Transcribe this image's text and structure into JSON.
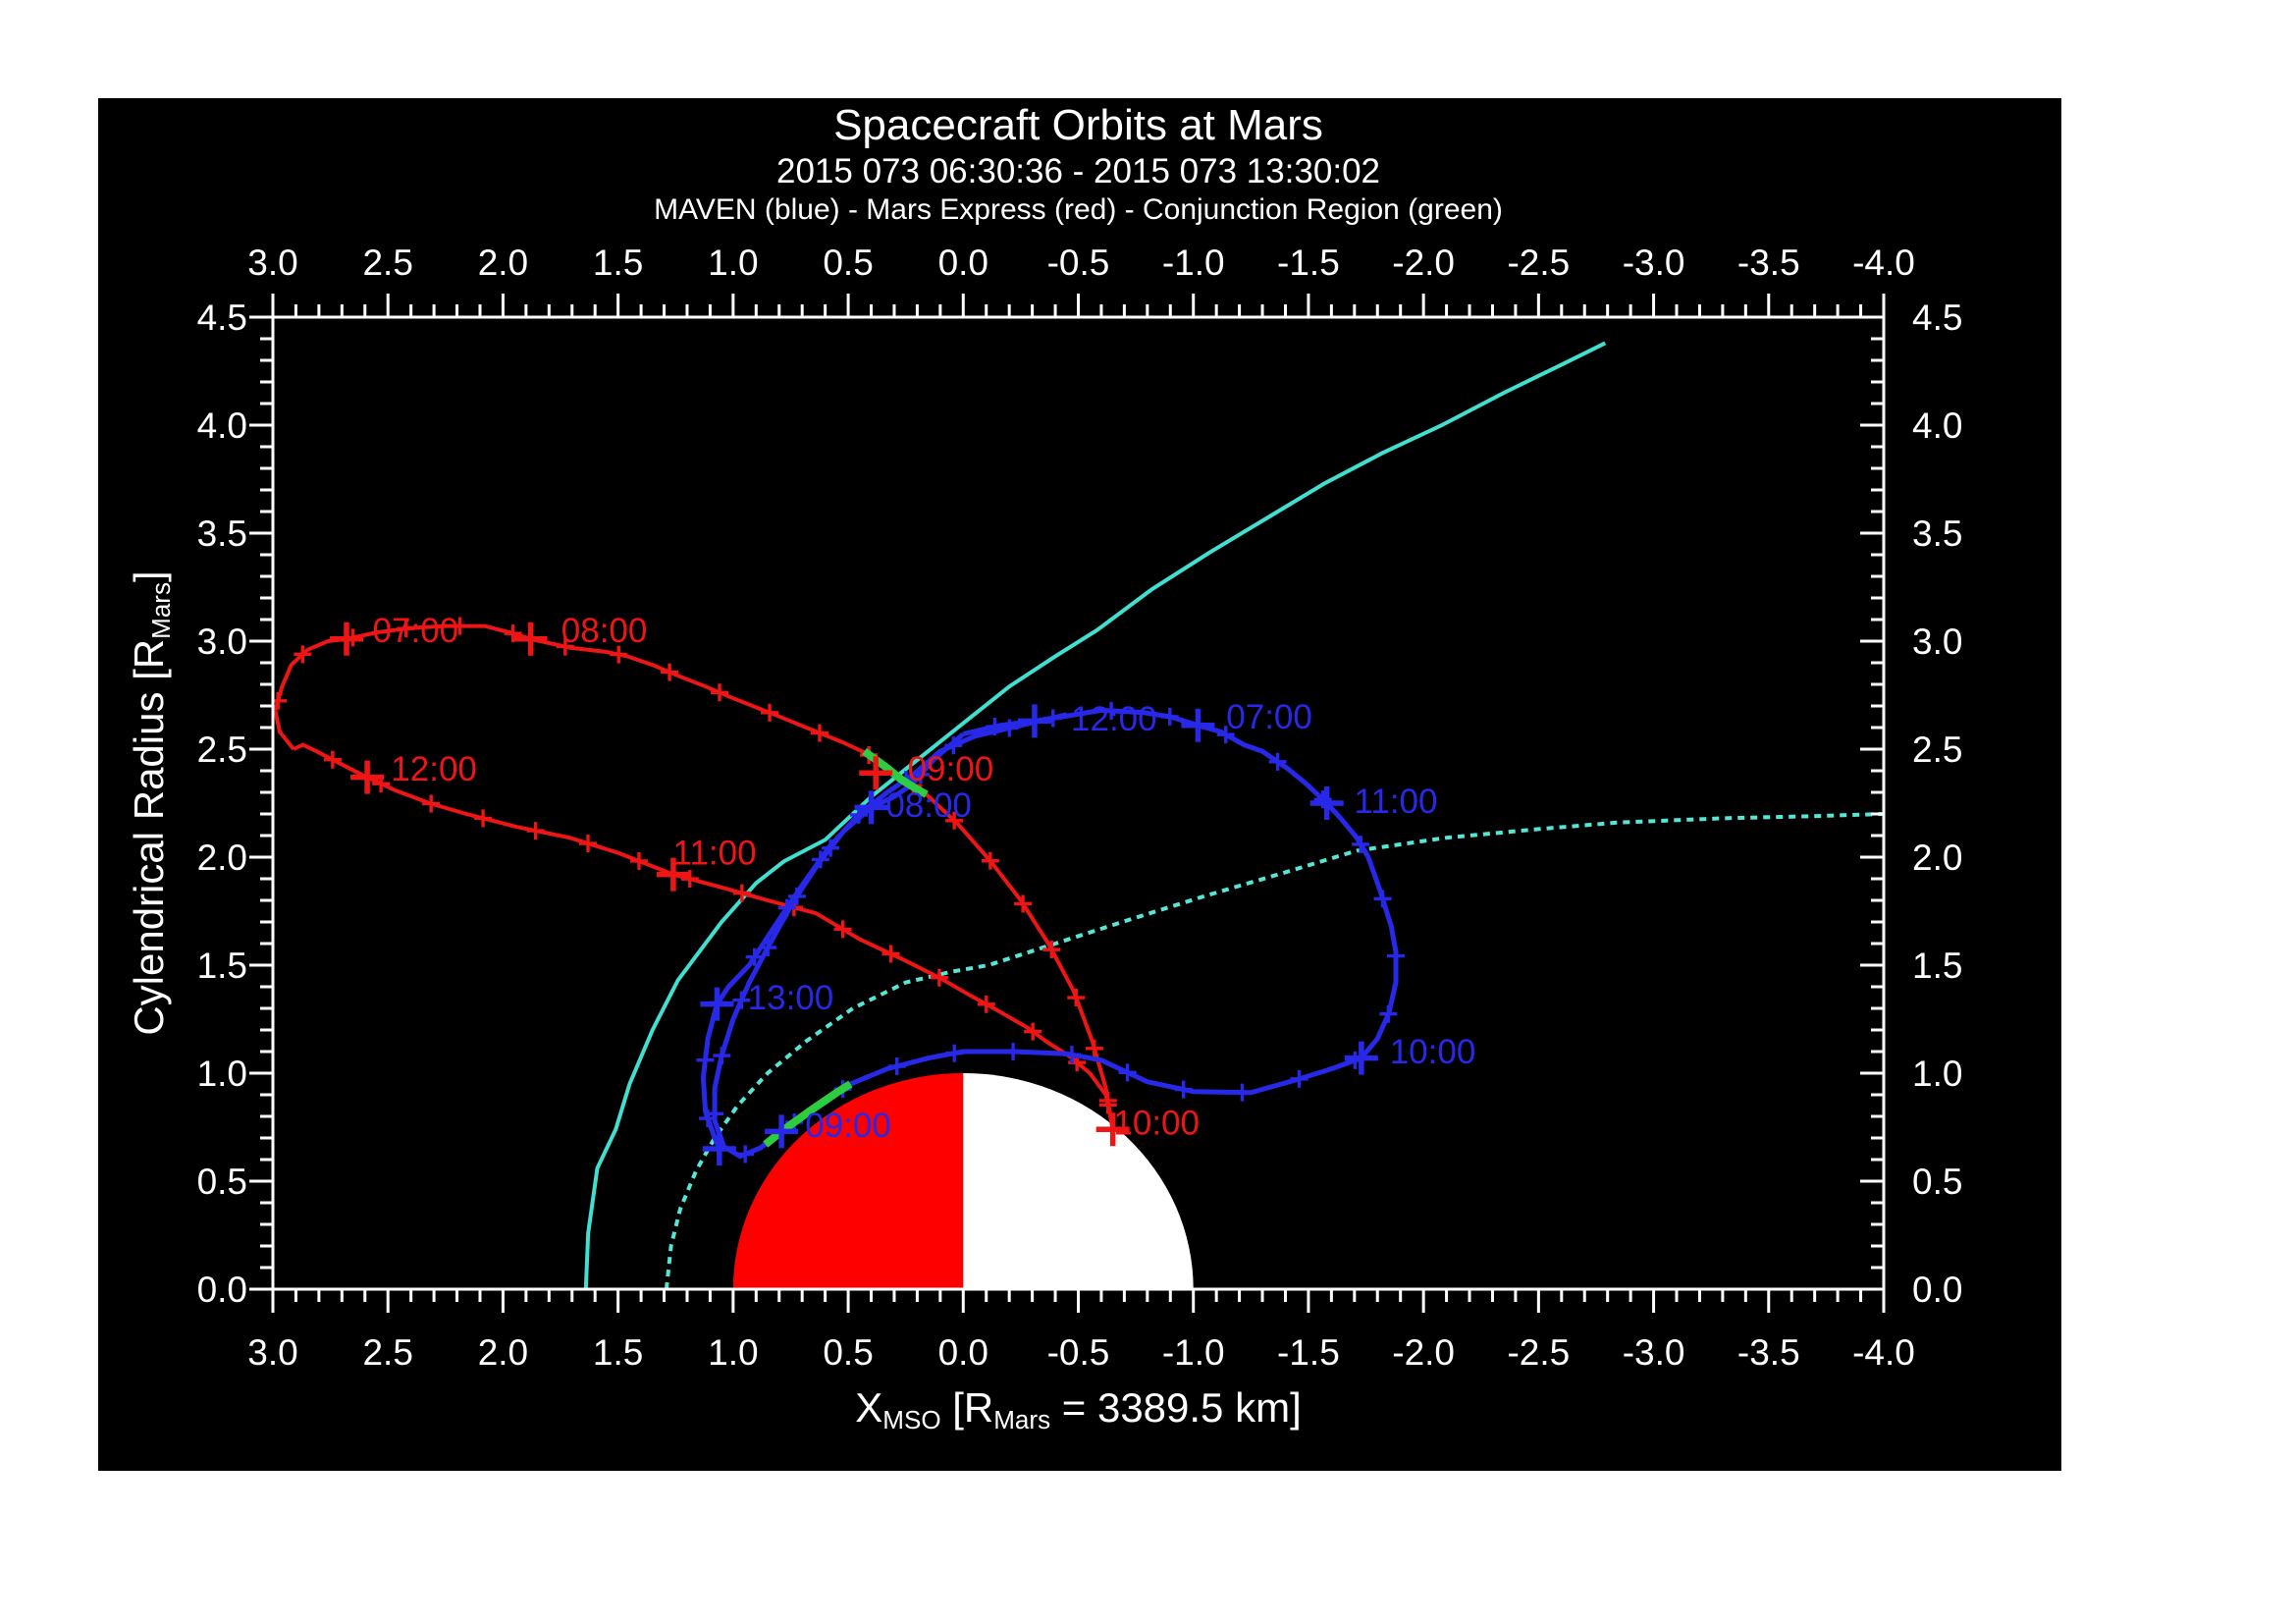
{
  "chart_data": {
    "type": "line",
    "title": "Spacecraft Orbits at Mars",
    "subtitle": "2015 073 06:30:36 - 2015 073 13:30:02",
    "legend": "MAVEN (blue) - Mars Express (red) - Conjunction Region (green)",
    "xlabel_segments": [
      {
        "t": "X"
      },
      {
        "t": "MSO",
        "sub": true
      },
      {
        "t": " [R"
      },
      {
        "t": "Mars",
        "sub": true
      },
      {
        "t": " = 3389.5 km]"
      }
    ],
    "ylabel_segments": [
      {
        "t": "Cylendrical Radius [R"
      },
      {
        "t": "Mars",
        "sub": true
      },
      {
        "t": "]"
      }
    ],
    "xlim": [
      3.0,
      -4.0
    ],
    "ylim": [
      0.0,
      4.5
    ],
    "x_major": 0.5,
    "x_minor": 0.1,
    "y_major": 0.5,
    "y_minor": 0.1,
    "x_tick_labels": [
      "3.0",
      "2.5",
      "2.0",
      "1.5",
      "1.0",
      "0.5",
      "0.0",
      "-0.5",
      "-1.0",
      "-1.5",
      "-2.0",
      "-2.5",
      "-3.0",
      "-3.5",
      "-4.0"
    ],
    "y_tick_labels": [
      "0.0",
      "0.5",
      "1.0",
      "1.5",
      "2.0",
      "2.5",
      "3.0",
      "3.5",
      "4.0",
      "4.5"
    ],
    "grid": false,
    "frame_color": "#ffffff",
    "background": "#000000",
    "mars": {
      "center": [
        0.0,
        0.0
      ],
      "radius": 1.0,
      "dayside_color": "#ff0000",
      "nightside_color": "#ffffff"
    },
    "series": [
      {
        "name": "bow-shock",
        "style": "solid",
        "color": "#40dfcf",
        "width": 4,
        "markers": false,
        "points": [
          [
            1.64,
            0.0
          ],
          [
            1.63,
            0.26
          ],
          [
            1.59,
            0.56
          ],
          [
            1.51,
            0.74
          ],
          [
            1.45,
            0.95
          ],
          [
            1.35,
            1.2
          ],
          [
            1.24,
            1.43
          ],
          [
            1.05,
            1.7
          ],
          [
            0.9,
            1.88
          ],
          [
            0.78,
            1.98
          ],
          [
            0.6,
            2.08
          ],
          [
            0.4,
            2.28
          ],
          [
            0.2,
            2.45
          ],
          [
            0.0,
            2.62
          ],
          [
            -0.2,
            2.79
          ],
          [
            -0.4,
            2.93
          ],
          [
            -0.58,
            3.05
          ],
          [
            -0.82,
            3.24
          ],
          [
            -1.07,
            3.41
          ],
          [
            -1.32,
            3.57
          ],
          [
            -1.57,
            3.73
          ],
          [
            -1.82,
            3.87
          ],
          [
            -2.08,
            4.0
          ],
          [
            -2.35,
            4.15
          ],
          [
            -2.6,
            4.28
          ],
          [
            -2.79,
            4.38
          ]
        ]
      },
      {
        "name": "magnetic-pileup-boundary",
        "style": "dotted",
        "color": "#55e6d5",
        "width": 4,
        "markers": false,
        "points": [
          [
            1.29,
            0.0
          ],
          [
            1.27,
            0.2
          ],
          [
            1.23,
            0.37
          ],
          [
            1.16,
            0.55
          ],
          [
            1.08,
            0.7
          ],
          [
            0.98,
            0.85
          ],
          [
            0.85,
            1.0
          ],
          [
            0.68,
            1.15
          ],
          [
            0.48,
            1.3
          ],
          [
            0.25,
            1.42
          ],
          [
            0.05,
            1.47
          ],
          [
            -0.11,
            1.5
          ],
          [
            -0.4,
            1.6
          ],
          [
            -0.72,
            1.71
          ],
          [
            -1.05,
            1.82
          ],
          [
            -1.4,
            1.93
          ],
          [
            -1.71,
            2.03
          ],
          [
            -2.1,
            2.09
          ],
          [
            -2.5,
            2.13
          ],
          [
            -2.84,
            2.16
          ],
          [
            -3.3,
            2.18
          ],
          [
            -3.7,
            2.19
          ],
          [
            -4.0,
            2.2
          ]
        ]
      },
      {
        "name": "mars-express-orbit",
        "style": "solid",
        "color": "#ee1515",
        "width": 4,
        "markers": true,
        "marker_spacing_px": 55,
        "points": [
          [
            2.91,
            2.5
          ],
          [
            2.97,
            2.58
          ],
          [
            2.99,
            2.68
          ],
          [
            2.96,
            2.79
          ],
          [
            2.92,
            2.89
          ],
          [
            2.85,
            2.96
          ],
          [
            2.76,
            3.0
          ],
          [
            2.68,
            3.01
          ],
          [
            2.55,
            3.04
          ],
          [
            2.41,
            3.06
          ],
          [
            2.25,
            3.07
          ],
          [
            2.08,
            3.07
          ],
          [
            1.97,
            3.04
          ],
          [
            1.88,
            3.01
          ],
          [
            1.71,
            2.97
          ],
          [
            1.55,
            2.95
          ],
          [
            1.46,
            2.93
          ],
          [
            1.35,
            2.89
          ],
          [
            1.24,
            2.84
          ],
          [
            1.12,
            2.79
          ],
          [
            1.01,
            2.74
          ],
          [
            0.82,
            2.66
          ],
          [
            0.66,
            2.59
          ],
          [
            0.52,
            2.53
          ],
          [
            0.42,
            2.48
          ],
          [
            0.3,
            2.39
          ],
          [
            0.16,
            2.29
          ],
          [
            0.02,
            2.15
          ],
          [
            -0.12,
            1.98
          ],
          [
            -0.25,
            1.8
          ],
          [
            -0.37,
            1.6
          ],
          [
            -0.48,
            1.38
          ],
          [
            -0.56,
            1.15
          ],
          [
            -0.62,
            0.93
          ],
          [
            -0.65,
            0.74
          ],
          [
            -0.62,
            0.9
          ],
          [
            -0.55,
            1.0
          ],
          [
            -0.46,
            1.08
          ],
          [
            -0.37,
            1.14
          ],
          [
            -0.28,
            1.21
          ],
          [
            -0.15,
            1.29
          ],
          [
            -0.03,
            1.36
          ],
          [
            0.1,
            1.44
          ],
          [
            0.25,
            1.52
          ],
          [
            0.45,
            1.62
          ],
          [
            0.64,
            1.74
          ],
          [
            0.85,
            1.8
          ],
          [
            1.05,
            1.86
          ],
          [
            1.26,
            1.92
          ],
          [
            1.5,
            2.02
          ],
          [
            1.71,
            2.09
          ],
          [
            1.94,
            2.14
          ],
          [
            2.16,
            2.2
          ],
          [
            2.32,
            2.25
          ],
          [
            2.47,
            2.31
          ],
          [
            2.61,
            2.38
          ],
          [
            2.72,
            2.44
          ],
          [
            2.81,
            2.49
          ],
          [
            2.87,
            2.52
          ],
          [
            2.91,
            2.5
          ]
        ]
      },
      {
        "name": "maven-orbit-pass1",
        "style": "solid",
        "color": "#2828e8",
        "width": 5,
        "markers": true,
        "marker_spacing_px": 60,
        "points": [
          [
            0.0,
            2.57
          ],
          [
            0.13,
            2.45
          ],
          [
            0.22,
            2.34
          ],
          [
            0.3,
            2.28
          ],
          [
            0.4,
            2.23
          ],
          [
            0.52,
            2.12
          ],
          [
            0.63,
            1.97
          ],
          [
            0.74,
            1.79
          ],
          [
            0.84,
            1.6
          ],
          [
            0.93,
            1.42
          ],
          [
            1.0,
            1.25
          ],
          [
            1.05,
            1.08
          ],
          [
            1.08,
            0.93
          ],
          [
            1.08,
            0.78
          ],
          [
            1.04,
            0.66
          ],
          [
            0.97,
            0.615
          ],
          [
            0.88,
            0.655
          ],
          [
            0.79,
            0.73
          ],
          [
            0.66,
            0.83
          ],
          [
            0.49,
            0.95
          ],
          [
            0.33,
            1.02
          ],
          [
            0.15,
            1.07
          ],
          [
            0.0,
            1.1
          ],
          [
            -0.22,
            1.1
          ],
          [
            -0.45,
            1.09
          ],
          [
            -0.6,
            1.06
          ],
          [
            -0.8,
            0.96
          ],
          [
            -1.0,
            0.915
          ],
          [
            -1.25,
            0.91
          ],
          [
            -1.45,
            0.97
          ],
          [
            -1.6,
            1.02
          ],
          [
            -1.73,
            1.07
          ],
          [
            -1.8,
            1.16
          ],
          [
            -1.85,
            1.28
          ],
          [
            -1.88,
            1.42
          ],
          [
            -1.88,
            1.56
          ],
          [
            -1.86,
            1.68
          ],
          [
            -1.81,
            1.85
          ],
          [
            -1.76,
            2.0
          ],
          [
            -1.71,
            2.09
          ],
          [
            -1.64,
            2.18
          ],
          [
            -1.58,
            2.25
          ],
          [
            -1.49,
            2.34
          ],
          [
            -1.41,
            2.41
          ],
          [
            -1.3,
            2.49
          ],
          [
            -1.22,
            2.52
          ],
          [
            -1.12,
            2.58
          ],
          [
            -1.02,
            2.61
          ],
          [
            -0.9,
            2.65
          ],
          [
            -0.78,
            2.67
          ],
          [
            -0.6,
            2.68
          ],
          [
            -0.43,
            2.65
          ],
          [
            -0.31,
            2.63
          ],
          [
            -0.16,
            2.61
          ],
          [
            0.0,
            2.57
          ]
        ]
      },
      {
        "name": "maven-orbit-pass2",
        "style": "solid",
        "color": "#2828e8",
        "width": 5,
        "markers": true,
        "marker_spacing_px": 60,
        "points": [
          [
            -0.45,
            2.66
          ],
          [
            -0.25,
            2.61
          ],
          [
            -0.05,
            2.56
          ],
          [
            0.1,
            2.49
          ],
          [
            0.22,
            2.38
          ],
          [
            0.33,
            2.3
          ],
          [
            0.45,
            2.2
          ],
          [
            0.58,
            2.05
          ],
          [
            0.7,
            1.87
          ],
          [
            0.82,
            1.68
          ],
          [
            0.93,
            1.5
          ],
          [
            1.02,
            1.4
          ],
          [
            1.07,
            1.32
          ],
          [
            1.11,
            1.16
          ],
          [
            1.13,
            0.98
          ],
          [
            1.12,
            0.82
          ],
          [
            1.08,
            0.7
          ],
          [
            1.06,
            0.65
          ]
        ]
      },
      {
        "name": "conjunction-region-on-mars-express",
        "style": "solid",
        "color": "#2ecc40",
        "width": 8,
        "markers": false,
        "points": [
          [
            0.43,
            2.49
          ],
          [
            0.34,
            2.42
          ],
          [
            0.27,
            2.36
          ],
          [
            0.21,
            2.32
          ],
          [
            0.16,
            2.29
          ]
        ]
      },
      {
        "name": "conjunction-region-on-maven",
        "style": "solid",
        "color": "#2ecc40",
        "width": 8,
        "markers": false,
        "points": [
          [
            0.86,
            0.67
          ],
          [
            0.79,
            0.73
          ],
          [
            0.66,
            0.83
          ],
          [
            0.55,
            0.91
          ],
          [
            0.49,
            0.95
          ]
        ]
      }
    ],
    "hour_ticks": [
      {
        "series": "mars-express",
        "color": "#ee1515",
        "label": "07:00",
        "tick": [
          2.68,
          3.01
        ],
        "label_pos": [
          2.38,
          3.05
        ]
      },
      {
        "series": "mars-express",
        "color": "#ee1515",
        "label": "08:00",
        "tick": [
          1.88,
          3.01
        ],
        "label_pos": [
          1.56,
          3.05
        ]
      },
      {
        "series": "mars-express",
        "color": "#ee1515",
        "label": "09:00",
        "tick": [
          0.38,
          2.39
        ],
        "label_pos": [
          0.055,
          2.41
        ]
      },
      {
        "series": "mars-express",
        "color": "#ee1515",
        "label": "10:00",
        "tick": [
          -0.65,
          0.74
        ],
        "label_pos": [
          -0.84,
          0.77
        ]
      },
      {
        "series": "mars-express",
        "color": "#ee1515",
        "label": "11:00",
        "tick": [
          1.26,
          1.92
        ],
        "label_pos": [
          1.08,
          2.02
        ]
      },
      {
        "series": "mars-express",
        "color": "#ee1515",
        "label": "12:00",
        "tick": [
          2.59,
          2.37
        ],
        "label_pos": [
          2.3,
          2.41
        ]
      },
      {
        "series": "maven",
        "color": "#2828e8",
        "label": "07:00",
        "tick": [
          -1.02,
          2.61
        ],
        "label_pos": [
          -1.33,
          2.65
        ]
      },
      {
        "series": "maven",
        "color": "#2828e8",
        "label": "08:00",
        "tick": [
          0.4,
          2.23
        ],
        "label_pos": [
          0.15,
          2.24
        ]
      },
      {
        "series": "maven",
        "color": "#2828e8",
        "label": "09:00",
        "tick": [
          0.79,
          0.73
        ],
        "label_pos": [
          0.5,
          0.76
        ]
      },
      {
        "series": "maven",
        "color": "#2828e8",
        "label": "10:00",
        "tick": [
          -1.73,
          1.07
        ],
        "label_pos": [
          -2.04,
          1.1
        ]
      },
      {
        "series": "maven",
        "color": "#2828e8",
        "label": "11:00",
        "tick": [
          -1.58,
          2.25
        ],
        "label_pos": [
          -1.88,
          2.26
        ]
      },
      {
        "series": "maven",
        "color": "#2828e8",
        "label": "12:00",
        "tick": [
          -0.31,
          2.63
        ],
        "label_pos": [
          -0.655,
          2.64
        ]
      },
      {
        "series": "maven",
        "color": "#2828e8",
        "label": "13:00",
        "tick": [
          1.07,
          1.32
        ],
        "label_pos": [
          0.75,
          1.35
        ]
      },
      {
        "series": "maven",
        "color": "#2828e8",
        "label": "",
        "tick": [
          1.06,
          0.65
        ],
        "label_pos": [
          1.06,
          0.65
        ]
      }
    ]
  }
}
